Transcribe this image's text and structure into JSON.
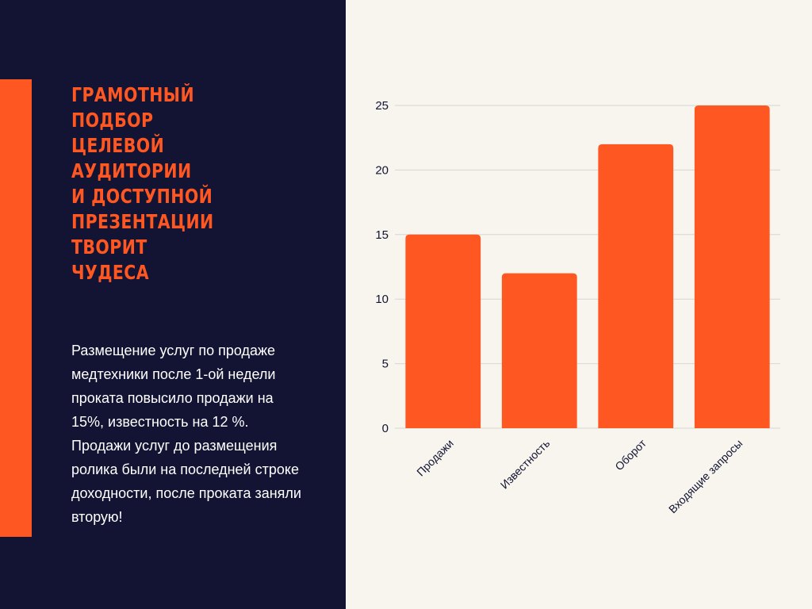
{
  "slide": {
    "headline": "ГРАМОТНЫЙ ПОДБОР\nЦЕЛЕВОЙ АУДИТОРИИ\nИ ДОСТУПНОЙ\nПРЕЗЕНТАЦИИ ТВОРИТ\nЧУДЕСА",
    "body": "Размещение услуг по продаже медтехники после 1-ой недели проката повысило продажи на 15%, известность на 12 %. Продажи услуг до размещения ролика были на последней строке доходности, после проката заняли вторую!"
  },
  "colors": {
    "panel": "#131434",
    "accent": "#ff5722",
    "bar": "#ff5722",
    "background": "#f7f5ee",
    "grid": "#d6d6d2",
    "text": "#131434"
  },
  "chart_data": {
    "type": "bar",
    "categories": [
      "Продажи",
      "Известность",
      "Оборот",
      "Входящие запросы"
    ],
    "values": [
      15,
      12,
      22,
      25
    ],
    "title": "",
    "xlabel": "",
    "ylabel": "",
    "ylim": [
      0,
      25
    ],
    "yticks": [
      0,
      5,
      10,
      15,
      20,
      25
    ],
    "grid": true,
    "legend": "none"
  }
}
